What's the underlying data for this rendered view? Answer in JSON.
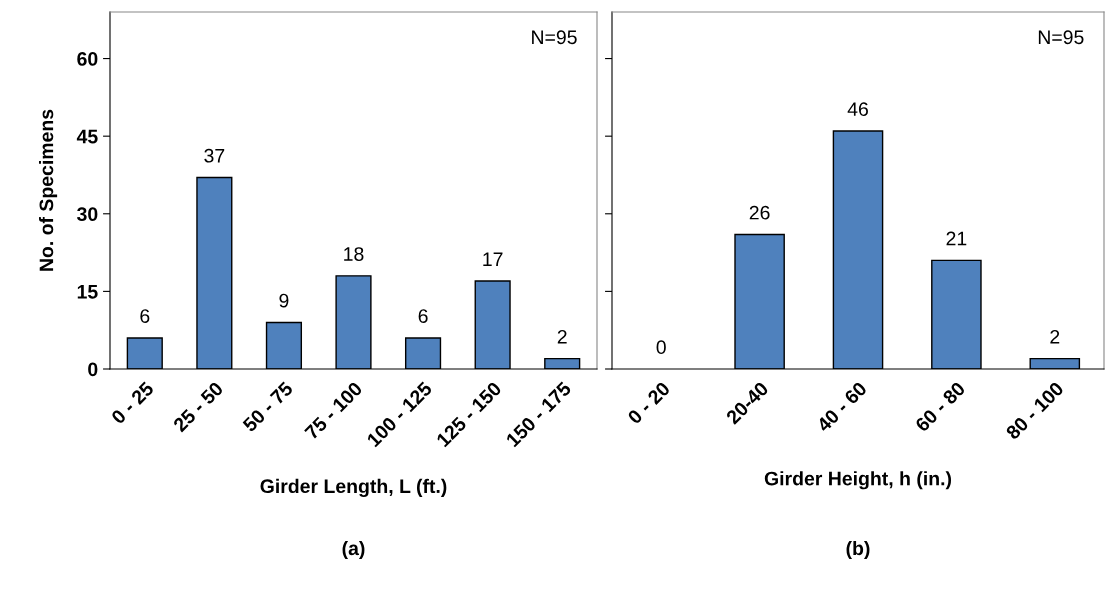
{
  "chart_data": [
    {
      "type": "bar",
      "xlabel": "Girder Length, L (ft.)",
      "ylabel": "No. of Specimens",
      "categories": [
        "0 - 25",
        "25 - 50",
        "50 - 75",
        "75 - 100",
        "100 - 125",
        "125 - 150",
        "150 - 175"
      ],
      "values": [
        6,
        37,
        9,
        18,
        6,
        17,
        2
      ],
      "color": "#4f81bd",
      "ylim": [
        0,
        69
      ],
      "yticks": [
        0,
        15,
        30,
        45,
        60
      ],
      "data_labels": true,
      "grid": false,
      "annotations": [
        "N=95",
        "(a)"
      ]
    },
    {
      "type": "bar",
      "xlabel": "Girder Height, h (in.)",
      "categories": [
        "0 - 20",
        "20-40",
        "40 - 60",
        "60 - 80",
        "80 - 100"
      ],
      "values": [
        0,
        26,
        46,
        21,
        2
      ],
      "color": "#4f81bd",
      "ylim": [
        0,
        69
      ],
      "yticks": [
        0,
        15,
        30,
        45,
        60
      ],
      "tick_labels": "x",
      "data_labels": true,
      "grid": false,
      "annotations": [
        "N=95",
        "(b)"
      ]
    }
  ]
}
